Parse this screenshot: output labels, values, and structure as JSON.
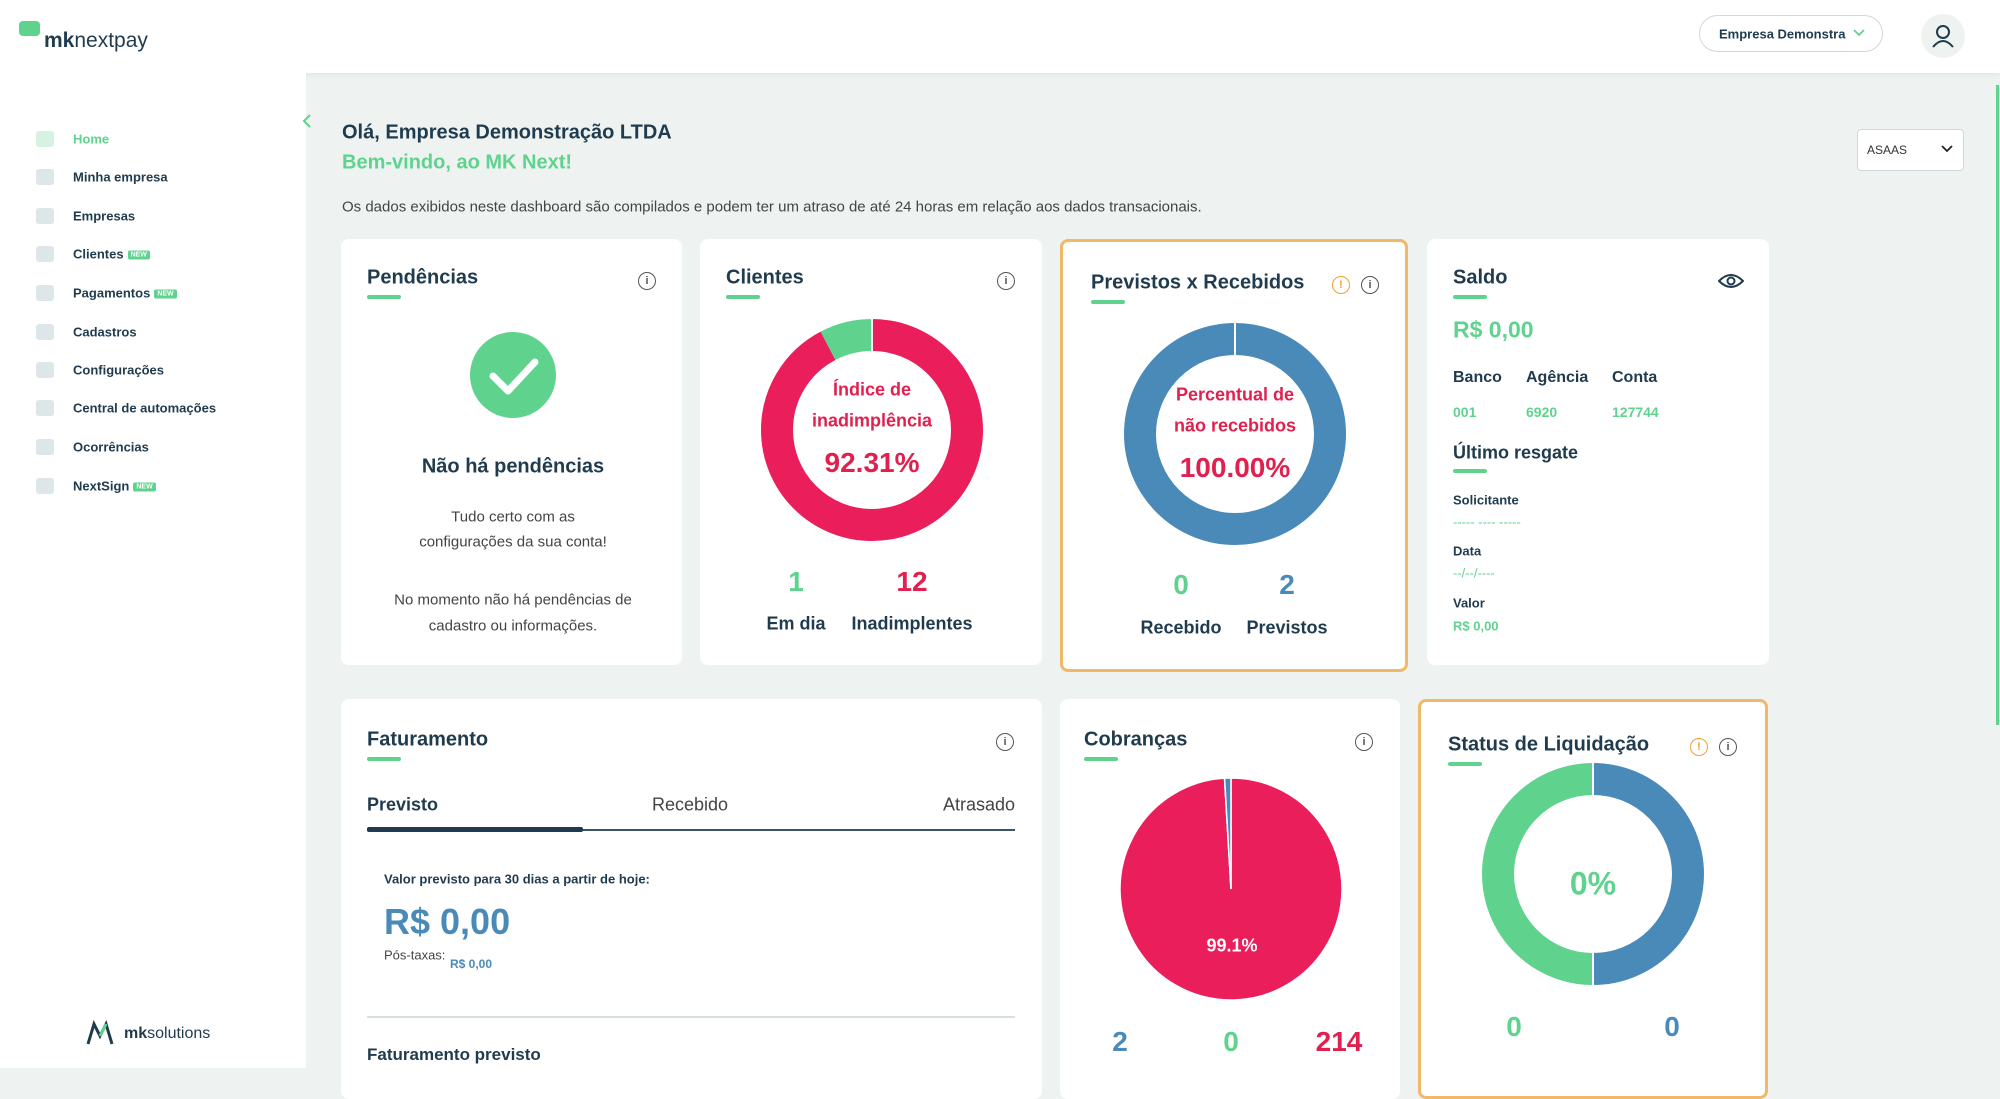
{
  "header": {
    "logo_bold": "mk",
    "logo_rest": "nextpay",
    "company_select": "Empresa Demonstra"
  },
  "sidebar": {
    "items": [
      {
        "label": "Home"
      },
      {
        "label": "Minha empresa"
      },
      {
        "label": "Empresas"
      },
      {
        "label": "Clientes",
        "badge": "NEW"
      },
      {
        "label": "Pagamentos",
        "badge": "NEW"
      },
      {
        "label": "Cadastros"
      },
      {
        "label": "Configurações"
      },
      {
        "label": "Central de automações"
      },
      {
        "label": "Ocorrências"
      },
      {
        "label": "NextSign",
        "badge": "NEW"
      }
    ],
    "footer_bold": "mk",
    "footer_rest": "solutions"
  },
  "greeting": {
    "hello": "Olá, Empresa Demonstração LTDA",
    "welcome": "Bem-vindo, ao MK Next!",
    "notice": "Os dados exibidos neste dashboard são compilados e podem ter um atraso de até 24 horas em relação aos dados transacionais."
  },
  "source_select": "ASAAS",
  "pendencias": {
    "title": "Pendências",
    "heading": "Não há pendências",
    "text1": [
      "Tudo certo com as",
      "configurações da sua conta!"
    ],
    "text2": [
      "No momento não há pendências de",
      "cadastro ou informações."
    ]
  },
  "clientes": {
    "title": "Clientes",
    "center_label": [
      "Índice de",
      "inadimplência"
    ],
    "center_value": "92.31%",
    "em_dia": {
      "count": 1,
      "label": "Em dia",
      "color": "#5fd38d"
    },
    "inadimplentes": {
      "count": 12,
      "label": "Inadimplentes",
      "color": "#e91e5a"
    }
  },
  "previstos": {
    "title": "Previstos x Recebidos",
    "center_label": [
      "Percentual de",
      "não recebidos"
    ],
    "center_value": "100.00%",
    "recebido": {
      "count": 0,
      "label": "Recebido",
      "color": "#5fd38d"
    },
    "previstos": {
      "count": 2,
      "label": "Previstos",
      "color": "#4a8ab8"
    }
  },
  "saldo": {
    "title": "Saldo",
    "balance": "R$ 0,00",
    "bank": {
      "banco_label": "Banco",
      "banco": "001",
      "agencia_label": "Agência",
      "agencia": "6920",
      "conta_label": "Conta",
      "conta": "127744"
    },
    "ultimo_resgate": "Último resgate",
    "solicitante_label": "Solicitante",
    "solicitante": "----- ---- -----",
    "data_label": "Data",
    "data": "--/--/----",
    "valor_label": "Valor",
    "valor": "R$ 0,00"
  },
  "faturamento": {
    "title": "Faturamento",
    "tabs": [
      "Previsto",
      "Recebido",
      "Atrasado"
    ],
    "value_label": "Valor previsto para 30 dias a partir de hoje:",
    "value": "R$ 0,00",
    "after_fees_label": "Pós-taxas:",
    "after_fees": "R$ 0,00",
    "subtitle": "Faturamento previsto"
  },
  "cobrancas": {
    "title": "Cobranças",
    "slices": [
      {
        "count": 214,
        "color": "#e91e5a"
      },
      {
        "count": 0,
        "color": "#5fd38d"
      },
      {
        "count": 2,
        "color": "#4a8ab8"
      }
    ],
    "pie_label": "99.1%"
  },
  "status": {
    "title": "Status de Liquidação",
    "center_value": "0%",
    "left_count": 0,
    "right_count": 0
  }
}
